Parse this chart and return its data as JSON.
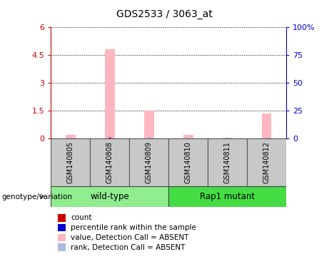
{
  "title": "GDS2533 / 3063_at",
  "samples": [
    "GSM140805",
    "GSM140808",
    "GSM140809",
    "GSM140810",
    "GSM140811",
    "GSM140812"
  ],
  "group_names": [
    "wild-type",
    "Rap1 mutant"
  ],
  "group_colors": [
    "#90EE90",
    "#44DD44"
  ],
  "group_ranges": [
    [
      0,
      3
    ],
    [
      3,
      6
    ]
  ],
  "pink_bars": [
    0.2,
    4.82,
    1.5,
    0.18,
    0.03,
    1.35
  ],
  "blue_bars": [
    0.05,
    0.12,
    0.07,
    0.04,
    0.02,
    0.05
  ],
  "red_bars": [
    0.0,
    0.04,
    0.0,
    0.0,
    0.0,
    0.0
  ],
  "dark_blue_bars": [
    0.0,
    0.0,
    0.0,
    0.0,
    0.0,
    0.0
  ],
  "ylim_left": [
    0,
    6
  ],
  "ylim_right": [
    0,
    100
  ],
  "yticks_left": [
    0,
    1.5,
    3,
    4.5,
    6
  ],
  "yticks_right": [
    0,
    25,
    50,
    75,
    100
  ],
  "ytick_labels_left": [
    "0",
    "1.5",
    "3",
    "4.5",
    "6"
  ],
  "ytick_labels_right": [
    "0",
    "25",
    "50",
    "75",
    "100%"
  ],
  "left_color": "#CC0000",
  "right_color": "#0000CC",
  "group_label": "genotype/variation",
  "legend_items": [
    {
      "label": "count",
      "color": "#CC0000"
    },
    {
      "label": "percentile rank within the sample",
      "color": "#0000CC"
    },
    {
      "label": "value, Detection Call = ABSENT",
      "color": "#FFB6C1"
    },
    {
      "label": "rank, Detection Call = ABSENT",
      "color": "#AABBDD"
    }
  ],
  "gray_box_color": "#C8C8C8",
  "pink_bar_width": 0.25,
  "blue_bar_width": 0.08,
  "red_bar_width": 0.06
}
